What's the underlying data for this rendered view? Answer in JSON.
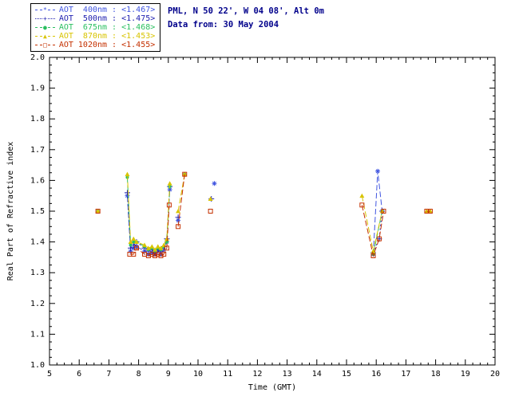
{
  "header": {
    "site_line": "PML, N 50 22', W 04 08', Alt 0m",
    "date_line": "Data from: 30 May 2004",
    "text_color": "#00008b"
  },
  "legend": {
    "items": [
      {
        "label": "AOT  400nm : ",
        "value": "<1.467>",
        "color": "#4055e0",
        "glyph": "*",
        "dash": "7,3"
      },
      {
        "label": "AOT  500nm : ",
        "value": "<1.475>",
        "color": "#2020b0",
        "glyph": "+",
        "dash": "2,3"
      },
      {
        "label": "AOT  675nm : ",
        "value": "<1.468>",
        "color": "#2abf5f",
        "glyph": "●",
        "dash": "7,3"
      },
      {
        "label": "AOT  870nm : ",
        "value": "<1.453>",
        "color": "#d8c400",
        "glyph": "▲",
        "dash": "7,3"
      },
      {
        "label": "AOT 1020nm : ",
        "value": "<1.455>",
        "color": "#c43000",
        "glyph": "□",
        "dash": "7,3"
      }
    ]
  },
  "chart_data": {
    "type": "line",
    "title": "",
    "xlabel": "Time (GMT)",
    "ylabel": "Real Part of Refractive index",
    "xlim": [
      5,
      20
    ],
    "ylim": [
      1.0,
      2.0
    ],
    "x_major": 1,
    "y_major": 0.1,
    "grid": false,
    "legend_position": "top-left",
    "series": [
      {
        "name": "AOT 400nm",
        "color": "#4055e0",
        "marker": "asterisk",
        "dash": "7,3",
        "points": [
          [
            7.62,
            1.55
          ],
          [
            7.73,
            1.37
          ],
          [
            7.83,
            1.38
          ],
          [
            7.93,
            1.385
          ],
          [
            8.2,
            1.37
          ],
          [
            8.33,
            1.36
          ],
          [
            8.45,
            1.365
          ],
          [
            8.55,
            1.36
          ],
          [
            8.65,
            1.37
          ],
          [
            8.75,
            1.36
          ],
          [
            8.85,
            1.375
          ],
          [
            8.95,
            1.4
          ],
          [
            9.05,
            1.57
          ],
          null,
          [
            9.33,
            1.47
          ],
          null,
          [
            10.55,
            1.59
          ],
          null,
          [
            15.9,
            1.36
          ],
          [
            16.05,
            1.63
          ],
          [
            16.2,
            1.5
          ]
        ]
      },
      {
        "name": "AOT 500nm",
        "color": "#2020b0",
        "marker": "plus",
        "dash": "2,3",
        "points": [
          [
            7.62,
            1.56
          ],
          [
            7.73,
            1.38
          ],
          [
            7.83,
            1.39
          ],
          [
            7.93,
            1.4
          ],
          [
            8.2,
            1.38
          ],
          [
            8.33,
            1.37
          ],
          [
            8.45,
            1.375
          ],
          [
            8.55,
            1.365
          ],
          [
            8.65,
            1.375
          ],
          [
            8.75,
            1.37
          ],
          [
            8.85,
            1.385
          ],
          [
            8.95,
            1.41
          ],
          [
            9.05,
            1.58
          ],
          null,
          [
            9.33,
            1.48
          ],
          null,
          [
            10.45,
            1.54
          ],
          null,
          [
            15.9,
            1.365
          ],
          [
            16.1,
            1.41
          ],
          [
            16.2,
            1.5
          ]
        ]
      },
      {
        "name": "AOT 675nm",
        "color": "#2abf5f",
        "marker": "dot",
        "dash": "7,3",
        "points": [
          [
            6.63,
            1.5
          ],
          null,
          [
            7.62,
            1.61
          ],
          [
            7.73,
            1.39
          ],
          [
            7.83,
            1.4
          ],
          [
            7.93,
            1.4
          ],
          [
            8.2,
            1.385
          ],
          [
            8.33,
            1.375
          ],
          [
            8.45,
            1.38
          ],
          [
            8.55,
            1.37
          ],
          [
            8.65,
            1.38
          ],
          [
            8.75,
            1.375
          ],
          [
            8.85,
            1.385
          ],
          [
            8.95,
            1.4
          ],
          [
            9.05,
            1.58
          ],
          null,
          [
            9.55,
            1.62
          ],
          null,
          [
            15.9,
            1.36
          ],
          [
            16.2,
            1.5
          ]
        ]
      },
      {
        "name": "AOT 870nm",
        "color": "#d8c400",
        "marker": "triangle",
        "dash": "7,3",
        "points": [
          [
            6.63,
            1.5
          ],
          null,
          [
            7.62,
            1.62
          ],
          [
            7.73,
            1.4
          ],
          [
            7.83,
            1.41
          ],
          [
            7.93,
            1.4
          ],
          [
            8.2,
            1.39
          ],
          [
            8.33,
            1.38
          ],
          [
            8.45,
            1.385
          ],
          [
            8.55,
            1.375
          ],
          [
            8.65,
            1.385
          ],
          [
            8.75,
            1.38
          ],
          [
            8.85,
            1.39
          ],
          [
            8.95,
            1.41
          ],
          [
            9.05,
            1.59
          ],
          null,
          [
            9.33,
            1.5
          ],
          [
            9.55,
            1.62
          ],
          null,
          [
            10.42,
            1.54
          ],
          null,
          [
            15.52,
            1.55
          ],
          [
            15.9,
            1.37
          ],
          [
            16.2,
            1.5
          ],
          null,
          [
            17.7,
            1.5
          ],
          [
            17.82,
            1.5
          ]
        ]
      },
      {
        "name": "AOT 1020nm",
        "color": "#c43000",
        "marker": "square",
        "dash": "7,3",
        "points": [
          [
            6.63,
            1.5
          ],
          null,
          [
            7.7,
            1.36
          ],
          [
            7.83,
            1.36
          ],
          [
            7.93,
            1.38
          ],
          [
            8.2,
            1.36
          ],
          [
            8.33,
            1.355
          ],
          [
            8.45,
            1.36
          ],
          [
            8.55,
            1.355
          ],
          [
            8.65,
            1.36
          ],
          [
            8.75,
            1.355
          ],
          [
            8.85,
            1.36
          ],
          [
            8.95,
            1.38
          ],
          [
            9.03,
            1.52
          ],
          null,
          [
            9.33,
            1.45
          ],
          [
            9.55,
            1.62
          ],
          null,
          [
            10.42,
            1.5
          ],
          null,
          [
            15.52,
            1.52
          ],
          [
            15.9,
            1.355
          ],
          [
            16.1,
            1.41
          ],
          [
            16.25,
            1.5
          ],
          null,
          [
            17.7,
            1.5
          ],
          [
            17.82,
            1.5
          ]
        ]
      }
    ]
  }
}
